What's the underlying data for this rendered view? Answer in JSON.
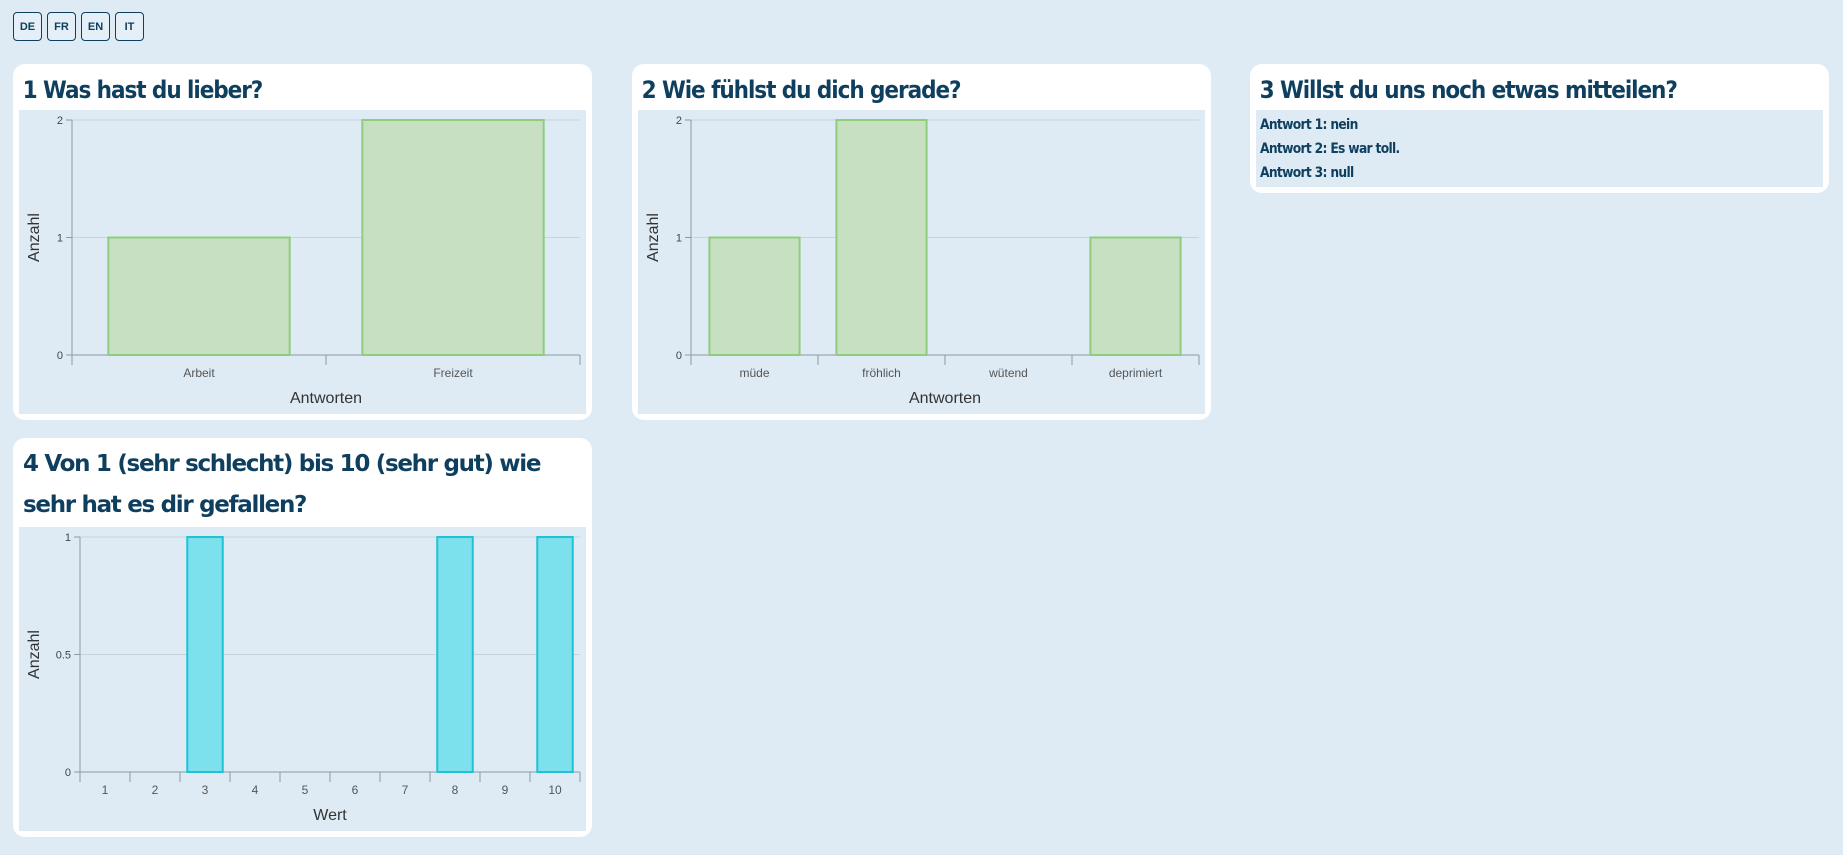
{
  "languages": [
    "DE",
    "FR",
    "EN",
    "IT"
  ],
  "cards": {
    "q1": {
      "title": "1 Was hast du lieber?"
    },
    "q2": {
      "title": "2 Wie fühlst du dich gerade?"
    },
    "q3": {
      "title": "3 Willst du uns noch etwas mitteilen?",
      "answers": [
        "Antwort 1: nein",
        "Antwort 2: Es war toll.",
        "Antwort 3: null"
      ]
    },
    "q4": {
      "title": "4 Von 1 (sehr schlecht) bis 10 (sehr gut) wie sehr hat es dir gefallen?"
    }
  },
  "chart_data": [
    {
      "id": "q1",
      "type": "bar",
      "categories": [
        "Arbeit",
        "Freizeit"
      ],
      "values": [
        1,
        2
      ],
      "xlabel": "Antworten",
      "ylabel": "Anzahl",
      "yticks": [
        "0",
        "1",
        "2"
      ],
      "ylim": [
        0,
        2
      ],
      "grid": true,
      "color": "#c6e0c1",
      "border_color": "#8fcc7e"
    },
    {
      "id": "q2",
      "type": "bar",
      "categories": [
        "müde",
        "fröhlich",
        "wütend",
        "deprimiert"
      ],
      "values": [
        1,
        2,
        0,
        1
      ],
      "xlabel": "Antworten",
      "ylabel": "Anzahl",
      "yticks": [
        "0",
        "1",
        "2"
      ],
      "ylim": [
        0,
        2
      ],
      "grid": true,
      "color": "#c6e0c1",
      "border_color": "#8fcc7e"
    },
    {
      "id": "q4",
      "type": "bar",
      "categories": [
        "1",
        "2",
        "3",
        "4",
        "5",
        "6",
        "7",
        "8",
        "9",
        "10"
      ],
      "values": [
        0,
        0,
        1,
        0,
        0,
        0,
        0,
        1,
        0,
        1
      ],
      "xlabel": "Wert",
      "ylabel": "Anzahl",
      "yticks": [
        "0",
        "0.5",
        "1"
      ],
      "ylim": [
        0,
        1
      ],
      "grid": true,
      "color": "#7de1ed",
      "border_color": "#1fc3d3"
    }
  ]
}
